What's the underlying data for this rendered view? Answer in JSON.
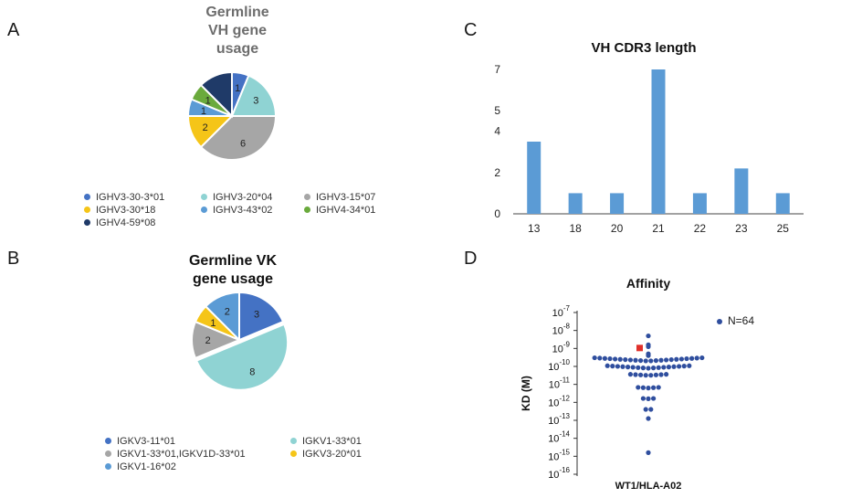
{
  "panels": {
    "a": "A",
    "b": "B",
    "c": "C",
    "d": "D"
  },
  "chart_data": [
    {
      "panel": "A",
      "type": "pie",
      "title_lines": [
        "Germline",
        "VH gene",
        "usage"
      ],
      "slices": [
        {
          "label": "IGHV3-30-3*01",
          "value": 1,
          "color": "#4472c4"
        },
        {
          "label": "IGHV3-20*04",
          "value": 3,
          "color": "#8fd3d3"
        },
        {
          "label": "IGHV3-15*07",
          "value": 6,
          "color": "#a6a6a6"
        },
        {
          "label": "IGHV3-30*18",
          "value": 2,
          "color": "#f5c518"
        },
        {
          "label": "IGHV3-43*02",
          "value": 1,
          "color": "#5b9bd5"
        },
        {
          "label": "IGHV4-34*01",
          "value": 1,
          "color": "#6aaa3c"
        },
        {
          "label": "IGHV4-59*08",
          "value": 2,
          "color": "#1f3a68"
        }
      ],
      "slice_labels": [
        "1",
        "3",
        "6",
        "2",
        "1",
        "1",
        ""
      ],
      "legend": [
        {
          "label": "IGHV3-30-3*01",
          "color": "#4472c4"
        },
        {
          "label": "IGHV3-20*04",
          "color": "#8fd3d3"
        },
        {
          "label": "IGHV3-15*07",
          "color": "#a6a6a6"
        },
        {
          "label": "IGHV3-30*18",
          "color": "#f5c518"
        },
        {
          "label": "IGHV3-43*02",
          "color": "#5b9bd5"
        },
        {
          "label": "IGHV4-34*01",
          "color": "#6aaa3c"
        },
        {
          "label": "IGHV4-59*08",
          "color": "#1f3a68"
        }
      ]
    },
    {
      "panel": "B",
      "type": "pie",
      "title_lines": [
        "Germline VK",
        "gene usage"
      ],
      "slices": [
        {
          "label": "IGKV3-11*01",
          "value": 3,
          "color": "#4472c4"
        },
        {
          "label": "IGKV1-33*01",
          "value": 8,
          "color": "#8fd3d3"
        },
        {
          "label": "IGKV1-33*01,IGKV1D-33*01",
          "value": 2,
          "color": "#a6a6a6"
        },
        {
          "label": "IGKV3-20*01",
          "value": 1,
          "color": "#f5c518"
        },
        {
          "label": "IGKV1-16*02",
          "value": 2,
          "color": "#5b9bd5"
        }
      ],
      "slice_labels": [
        "3",
        "8",
        "2",
        "1",
        "2"
      ],
      "legend": [
        {
          "label": "IGKV3-11*01",
          "color": "#4472c4"
        },
        {
          "label": "IGKV1-33*01",
          "color": "#8fd3d3"
        },
        {
          "label": "IGKV1-33*01,IGKV1D-33*01",
          "color": "#a6a6a6"
        },
        {
          "label": "IGKV3-20*01",
          "color": "#f5c518"
        },
        {
          "label": "IGKV1-16*02",
          "color": "#5b9bd5"
        }
      ]
    },
    {
      "panel": "C",
      "type": "bar",
      "title": "VH CDR3 length",
      "categories": [
        "13",
        "18",
        "20",
        "21",
        "22",
        "23",
        "25"
      ],
      "values": [
        3.5,
        1,
        1,
        7,
        1,
        2.2,
        1
      ],
      "ylim": [
        0,
        7
      ],
      "yticks": [
        "0",
        "2",
        "4",
        "5",
        "7"
      ],
      "ytick_values": [
        0,
        2,
        4,
        5,
        7
      ],
      "color": "#5b9bd5"
    },
    {
      "panel": "D",
      "type": "scatter",
      "title": "Affinity",
      "ylabel": "KD (M)",
      "xlabel": "WT1/HLA-A02",
      "log_scale": true,
      "yticks": [
        {
          "base": "10",
          "exp": "-7",
          "log": -7
        },
        {
          "base": "10",
          "exp": "-8",
          "log": -8
        },
        {
          "base": "10",
          "exp": "-9",
          "log": -9
        },
        {
          "base": "10",
          "exp": "-10",
          "log": -10
        },
        {
          "base": "10",
          "exp": "-11",
          "log": -11
        },
        {
          "base": "10",
          "exp": "-12",
          "log": -12
        },
        {
          "base": "10",
          "exp": "-13",
          "log": -13
        },
        {
          "base": "10",
          "exp": "-14",
          "log": -14
        },
        {
          "base": "10",
          "exp": "-15",
          "log": -15
        },
        {
          "base": "10",
          "exp": "-16",
          "log": -16
        }
      ],
      "legend_label": "N=64",
      "point_color": "#2f4e9e",
      "highlight_color": "#e0302a",
      "highlight_point": {
        "log_kd": -9.0
      },
      "points_log_kd": [
        -8.3,
        -8.8,
        -9.3,
        -8.9,
        -9.4,
        -9.7,
        -9.7,
        -9.7,
        -9.7,
        -9.7,
        -9.7,
        -9.7,
        -9.7,
        -9.7,
        -9.7,
        -9.7,
        -9.7,
        -9.7,
        -9.7,
        -9.7,
        -9.7,
        -9.7,
        -9.7,
        -9.7,
        -9.7,
        -9.7,
        -9.7,
        -10.1,
        -10.1,
        -10.1,
        -10.1,
        -10.1,
        -10.1,
        -10.1,
        -10.1,
        -10.1,
        -10.1,
        -10.1,
        -10.1,
        -10.1,
        -10.1,
        -10.1,
        -10.1,
        -10.1,
        -10.5,
        -10.5,
        -10.5,
        -10.5,
        -10.5,
        -10.5,
        -10.5,
        -10.5,
        -11.2,
        -11.2,
        -11.2,
        -11.2,
        -11.2,
        -11.8,
        -11.8,
        -11.8,
        -12.4,
        -12.4,
        -12.9,
        -14.8
      ]
    }
  ]
}
